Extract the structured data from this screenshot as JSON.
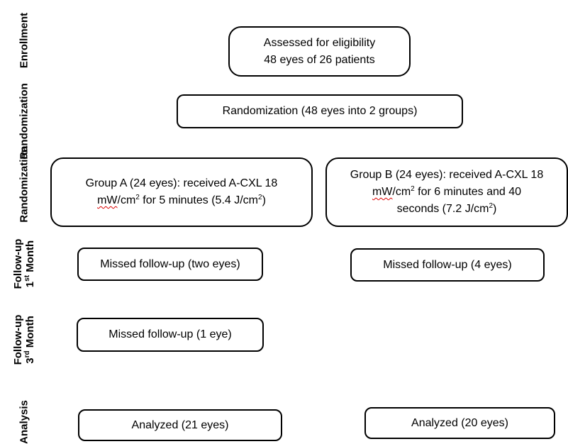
{
  "stages": {
    "enrollment": "Enrollment",
    "randomization": "Randomization",
    "allocation": "Randomization",
    "followup1": {
      "line1": "Follow-up",
      "line2_pre": "1",
      "line2_sup": "st",
      "line2_post": " Month"
    },
    "followup3": {
      "line1": "Follow-up",
      "line2_pre": "3",
      "line2_sup": "rd",
      "line2_post": " Month"
    },
    "analysis": "Analysis"
  },
  "boxes": {
    "eligibility": {
      "line1": "Assessed for eligibility",
      "line2": "48 eyes of 26 patients"
    },
    "randomization": {
      "text": "Randomization (48 eyes into 2 groups)"
    },
    "group_a": {
      "line1": "Group A (24 eyes): received A-CXL 18",
      "unit": "mW",
      "l2_a": "/cm",
      "l2_sup1": "2",
      "l2_b": " for 5 minutes (5.4 J/cm",
      "l2_sup2": "2",
      "l2_c": ")"
    },
    "group_b": {
      "line1": "Group B (24 eyes): received A-CXL 18",
      "unit": "mW",
      "l2_a": "/cm",
      "l2_sup1": "2",
      "l2_b": " for 6 minutes and 40",
      "l3_a": "seconds (7.2 J/cm",
      "l3_sup": "2",
      "l3_b": ")"
    },
    "missed_a1": {
      "text": "Missed follow-up (two eyes)"
    },
    "missed_b1": {
      "text": "Missed follow-up (4 eyes)"
    },
    "missed_a3": {
      "text": "Missed follow-up (1 eye)"
    },
    "analyzed_a": {
      "text": "Analyzed (21 eyes)"
    },
    "analyzed_b": {
      "text": "Analyzed (20 eyes)"
    }
  }
}
